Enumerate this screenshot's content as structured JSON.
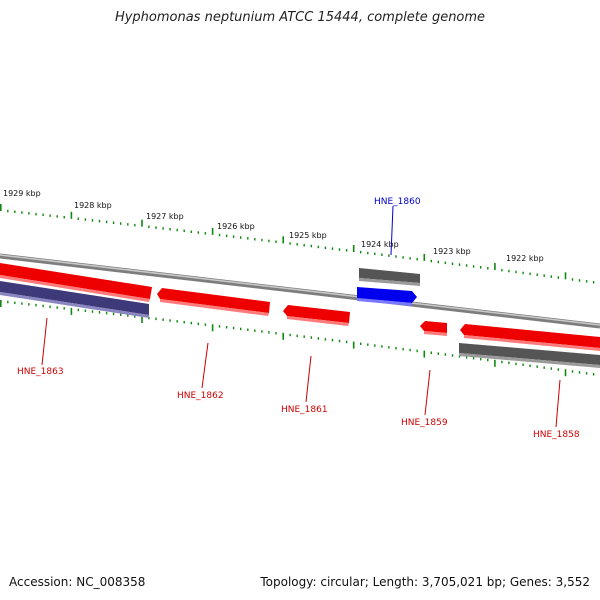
{
  "title": "Hyphomonas neptunium ATCC 15444, complete genome",
  "footer": {
    "accession": "Accession: NC_008358",
    "stats": "Topology: circular; Length: 3,705,021 bp; Genes: 3,552"
  },
  "colors": {
    "forward_gene": "#ee0000",
    "reverse_gene": "#555555",
    "highlight_gene": "#0000ee",
    "other_gene": "#3e3a7a",
    "tick": "#118811",
    "backbone": "#888888",
    "label_red": "#cc0000",
    "label_blue": "#0000cc"
  },
  "kbp_labels": [
    "1929 kbp",
    "1928 kbp",
    "1927 kbp",
    "1926 kbp",
    "1925 kbp",
    "1924 kbp",
    "1923 kbp",
    "1922 kbp"
  ],
  "gene_labels": [
    {
      "text": "HNE_1860",
      "color": "blue"
    },
    {
      "text": "HNE_1863",
      "color": "red"
    },
    {
      "text": "HNE_1862",
      "color": "red"
    },
    {
      "text": "HNE_1861",
      "color": "red"
    },
    {
      "text": "HNE_1859",
      "color": "red"
    },
    {
      "text": "HNE_1858",
      "color": "red"
    }
  ]
}
